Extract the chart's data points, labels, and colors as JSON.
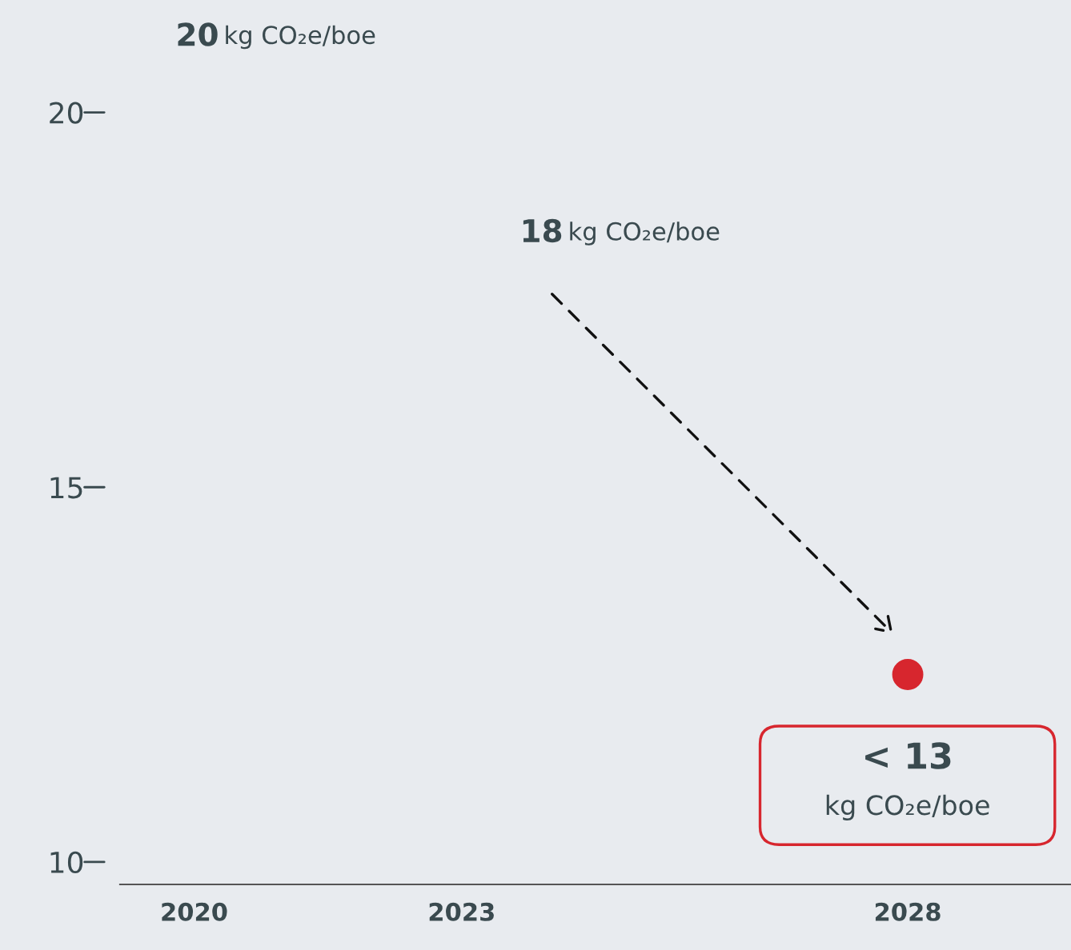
{
  "chart_data": {
    "type": "scatter",
    "x": [
      2028
    ],
    "series": [
      {
        "color": "#d7262e",
        "values": [
          12.5
        ]
      }
    ],
    "xlim": [
      2019.17,
      2029.83
    ],
    "ylim": [
      9.7,
      21.5
    ],
    "xticks": [
      2020,
      2023,
      2028
    ],
    "yticks": [
      10,
      15,
      20
    ],
    "marker": "circle",
    "grid": false,
    "legend": false,
    "annotations": [
      "20 kg CO₂e/boe",
      "18 kg CO₂e/boe",
      "< 13\nkg CO₂e/boe"
    ]
  }
}
